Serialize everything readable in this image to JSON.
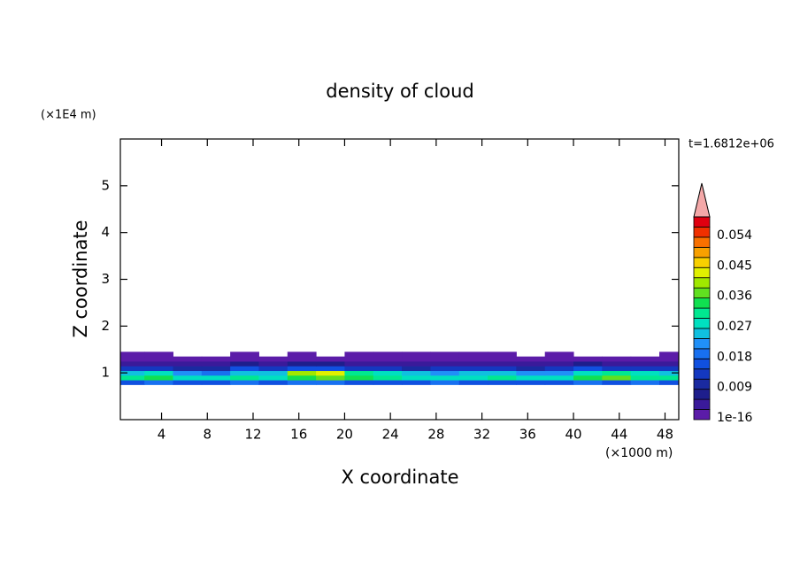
{
  "chart_data": {
    "type": "contour",
    "title": "density of cloud",
    "time_label": "t=1.6812e+06",
    "x_label": "X coordinate",
    "y_label": "Z coordinate",
    "x_unit": "(×1000 m)",
    "y_unit": "(×1E4 m)",
    "xlim": [
      0.4,
      49.2
    ],
    "ylim": [
      0,
      6
    ],
    "xticks": [
      4,
      8,
      12,
      16,
      20,
      24,
      28,
      32,
      36,
      40,
      44,
      48
    ],
    "yticks": [
      1,
      2,
      3,
      4,
      5
    ],
    "x": [
      1.25,
      3.75,
      6.25,
      8.75,
      11.25,
      13.75,
      16.25,
      18.75,
      21.25,
      23.75,
      26.25,
      28.75,
      31.25,
      33.75,
      36.25,
      38.75,
      41.25,
      43.75,
      46.25,
      48.75
    ],
    "z": [
      0.8,
      0.9,
      1.0,
      1.1,
      1.2,
      1.3,
      1.4
    ],
    "values": [
      [
        0.016,
        0.018,
        0.015,
        0.017,
        0.019,
        0.016,
        0.018,
        0.02,
        0.017,
        0.016,
        0.015,
        0.018,
        0.016,
        0.017,
        0.015,
        0.016,
        0.019,
        0.017,
        0.018,
        0.016
      ],
      [
        0.03,
        0.034,
        0.028,
        0.029,
        0.032,
        0.027,
        0.035,
        0.038,
        0.033,
        0.031,
        0.029,
        0.028,
        0.027,
        0.03,
        0.028,
        0.029,
        0.033,
        0.036,
        0.031,
        0.03
      ],
      [
        0.025,
        0.028,
        0.022,
        0.02,
        0.024,
        0.026,
        0.041,
        0.044,
        0.03,
        0.027,
        0.025,
        0.022,
        0.024,
        0.026,
        0.021,
        0.023,
        0.028,
        0.03,
        0.027,
        0.025
      ],
      [
        0.012,
        0.014,
        0.01,
        0.011,
        0.016,
        0.013,
        0.015,
        0.017,
        0.014,
        0.012,
        0.011,
        0.013,
        0.012,
        0.014,
        0.011,
        0.012,
        0.015,
        0.014,
        0.013,
        0.012
      ],
      [
        0.004,
        0.005,
        0.003,
        0.004,
        0.006,
        0.005,
        0.007,
        0.006,
        0.005,
        0.004,
        0.005,
        0.004,
        0.003,
        0.004,
        0.005,
        0.004,
        0.006,
        0.005,
        0.004,
        0.004
      ],
      [
        0.001,
        0.001,
        0.0008,
        0.0005,
        0.001,
        0.0007,
        0.001,
        0.0009,
        0.0006,
        0.0008,
        0.001,
        0.0009,
        0.0007,
        0.0008,
        0.0006,
        0.0009,
        0.001,
        0.0007,
        0.0008,
        0.001
      ],
      [
        0.0003,
        0.0002,
        null,
        null,
        0.0002,
        null,
        0.0004,
        null,
        0.0002,
        0.0003,
        0.0003,
        0.0002,
        0.0003,
        0.0002,
        null,
        0.0003,
        null,
        null,
        null,
        0.0002
      ]
    ],
    "colorbar": {
      "levels": [
        1e-16,
        0.003,
        0.006,
        0.009,
        0.012,
        0.015,
        0.018,
        0.021,
        0.024,
        0.027,
        0.03,
        0.033,
        0.036,
        0.039,
        0.042,
        0.045,
        0.048,
        0.051,
        0.054,
        0.057,
        0.06
      ],
      "colors": [
        "#5b1ca8",
        "#3a1a9a",
        "#1e1e8c",
        "#1a2aa0",
        "#1438c0",
        "#1050e0",
        "#1870f0",
        "#2090f8",
        "#10c0e0",
        "#00e0c0",
        "#00e890",
        "#10e050",
        "#60e020",
        "#a0e800",
        "#e0f000",
        "#f8d000",
        "#f8a000",
        "#f87000",
        "#f03000",
        "#e00010"
      ],
      "extend_color": "#f4a8a8",
      "ticks": [
        {
          "value": 1e-16,
          "label": "1e-16"
        },
        0.009,
        0.018,
        0.027,
        0.036,
        0.045,
        0.054
      ]
    }
  }
}
